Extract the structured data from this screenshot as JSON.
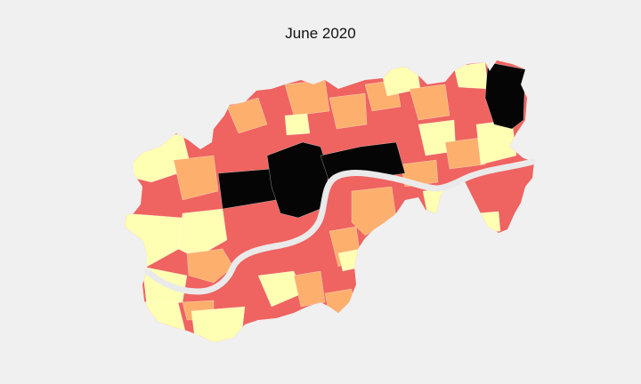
{
  "title": "June 2020",
  "palette": {
    "lowest": "#ffffb3",
    "low": "#fdb06d",
    "high": "#ef6360",
    "highest": "#050505",
    "river": "#f0f0f0",
    "background": "#f0f0f0"
  }
}
